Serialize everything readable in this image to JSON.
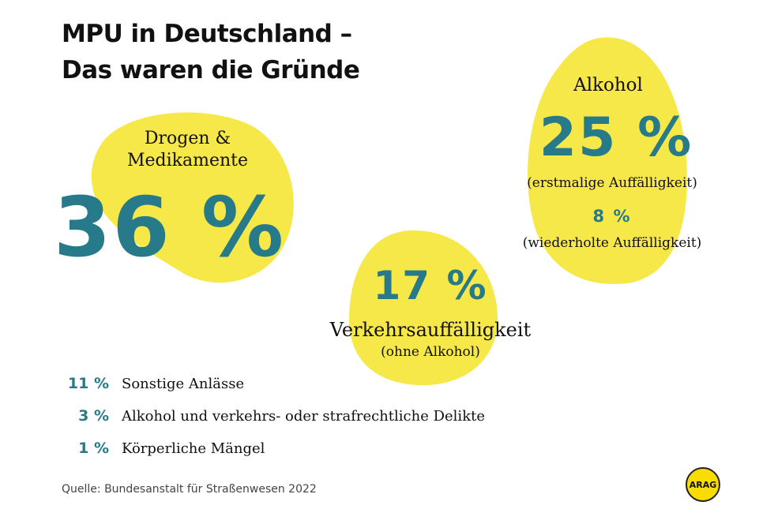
{
  "title": {
    "line1": "MPU in Deutschland –",
    "line2": "Das waren die Gründe"
  },
  "colors": {
    "accent": "#277a8a",
    "blob": "#f7e84a"
  },
  "drogen": {
    "label_line1": "Drogen &",
    "label_line2": "Medikamente",
    "value": "36 %"
  },
  "alkohol": {
    "label": "Alkohol",
    "value": "25 %",
    "value_note": "(erstmalige Auffälligkeit)",
    "second_value": "8 %",
    "second_note": "(wiederholte Auffälligkeit)"
  },
  "verkehr": {
    "value": "17 %",
    "label": "Verkehrsauffälligkeit",
    "note": "(ohne Alkohol)"
  },
  "others": [
    {
      "value": "11 %",
      "label": "Sonstige Anlässe"
    },
    {
      "value": "3 %",
      "label": "Alkohol und verkehrs- oder strafrechtliche Delikte"
    },
    {
      "value": "1 %",
      "label": "Körperliche Mängel"
    }
  ],
  "source": "Quelle:  Bundesanstalt für Straßenwesen 2022",
  "logo": "ARAG"
}
